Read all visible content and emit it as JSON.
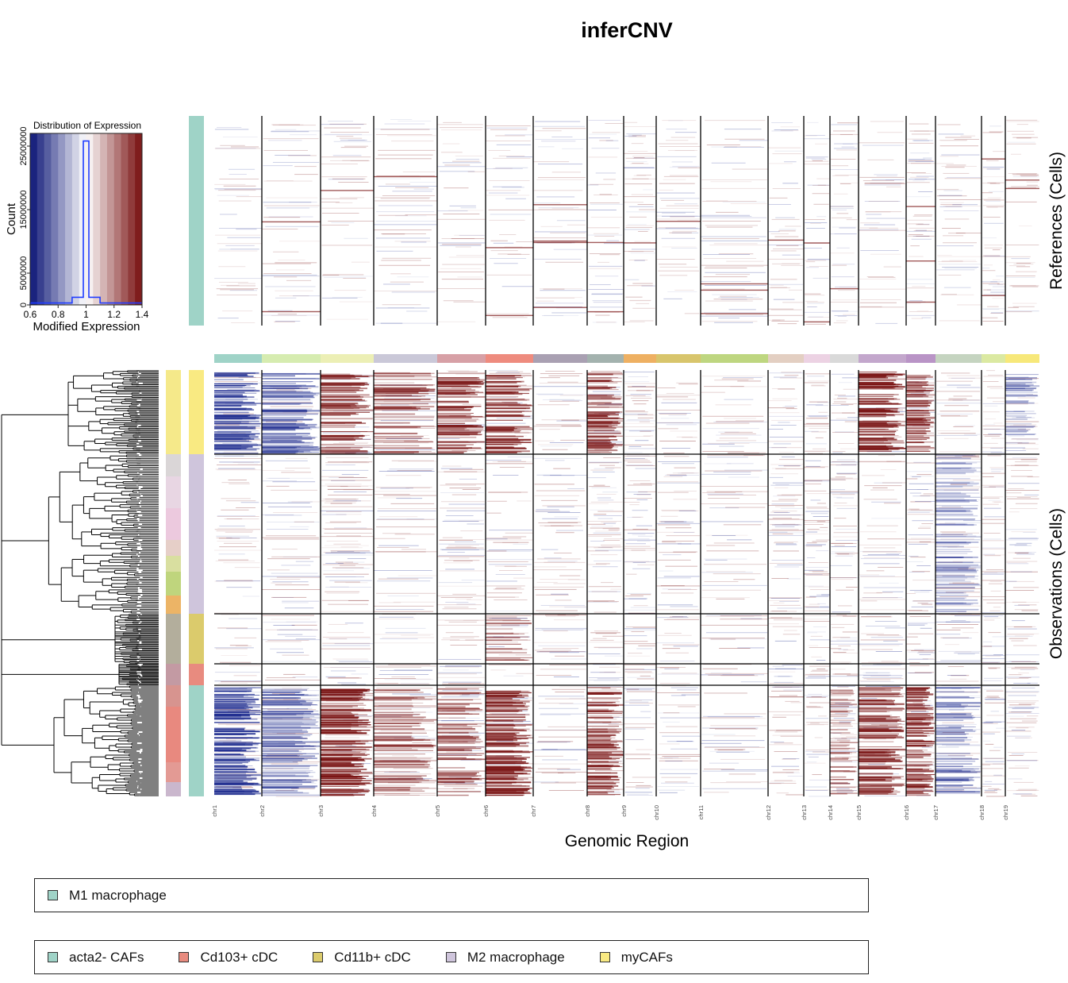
{
  "title": "inferCNV",
  "xlabel": "Genomic Region",
  "references_label": "References (Cells)",
  "observations_label": "Observations (Cells)",
  "histogram": {
    "title": "Distribution of Expression",
    "xlabel": "Modified Expression",
    "ylabel": "Count",
    "xticks": [
      "0.6",
      "0.8",
      "1",
      "1.2",
      "1.4"
    ],
    "yticks": [
      "0",
      "5000000",
      "15000000",
      "25000000"
    ],
    "xlim": [
      0.6,
      1.4
    ],
    "ylim": [
      0,
      27000000
    ]
  },
  "colors": {
    "low": "#1a237e",
    "neutral": "#ffffff",
    "high": "#7f1d1d",
    "hist_line": "#1f3cff"
  },
  "chart_data": {
    "type": "heatmap",
    "chromosomes": [
      {
        "name": "chr1",
        "color": "#9fd3c7"
      },
      {
        "name": "chr2",
        "color": "#d6ecb0"
      },
      {
        "name": "chr3",
        "color": "#ecefb5"
      },
      {
        "name": "chr4",
        "color": "#cac8d8"
      },
      {
        "name": "chr5",
        "color": "#d7a0a6"
      },
      {
        "name": "chr6",
        "color": "#ee8b7e"
      },
      {
        "name": "chr7",
        "color": "#a9a0b2"
      },
      {
        "name": "chr8",
        "color": "#a3b2ae"
      },
      {
        "name": "chr9",
        "color": "#eeb062"
      },
      {
        "name": "chr10",
        "color": "#d8c56c"
      },
      {
        "name": "chr11",
        "color": "#bed680"
      },
      {
        "name": "chr12",
        "color": "#e3cfc2"
      },
      {
        "name": "chr13",
        "color": "#ecd2e3"
      },
      {
        "name": "chr14",
        "color": "#d9d9d9"
      },
      {
        "name": "chr15",
        "color": "#c3a7cc"
      },
      {
        "name": "chr16",
        "color": "#b994c6"
      },
      {
        "name": "chr17",
        "color": "#c5d4c0"
      },
      {
        "name": "chr18",
        "color": "#dbe9a2"
      },
      {
        "name": "chr19",
        "color": "#f7e87a"
      }
    ],
    "reference_groups": [
      {
        "name": "M1 macrophage",
        "color": "#9fd3c7"
      }
    ],
    "observation_groups": [
      {
        "name": "myCAFs",
        "color": "#f9ea82"
      },
      {
        "name": "M2 macrophage",
        "color": "#cfc5dc"
      },
      {
        "name": "Cd11b+ cDC",
        "color": "#dbcb6c"
      },
      {
        "name": "Cd103+ cDC",
        "color": "#e88b7f"
      },
      {
        "name": "acta2- CAFs",
        "color": "#9fd3c7"
      }
    ]
  },
  "legend_reference": [
    {
      "label": "M1 macrophage",
      "color": "#9fd3c7"
    }
  ],
  "legend_observation": [
    {
      "label": "acta2- CAFs",
      "color": "#9fd3c7"
    },
    {
      "label": "Cd103+ cDC",
      "color": "#e88b7f"
    },
    {
      "label": "Cd11b+ cDC",
      "color": "#dbcb6c"
    },
    {
      "label": "M2 macrophage",
      "color": "#cfc5dc"
    },
    {
      "label": "myCAFs",
      "color": "#f9ea82"
    }
  ]
}
